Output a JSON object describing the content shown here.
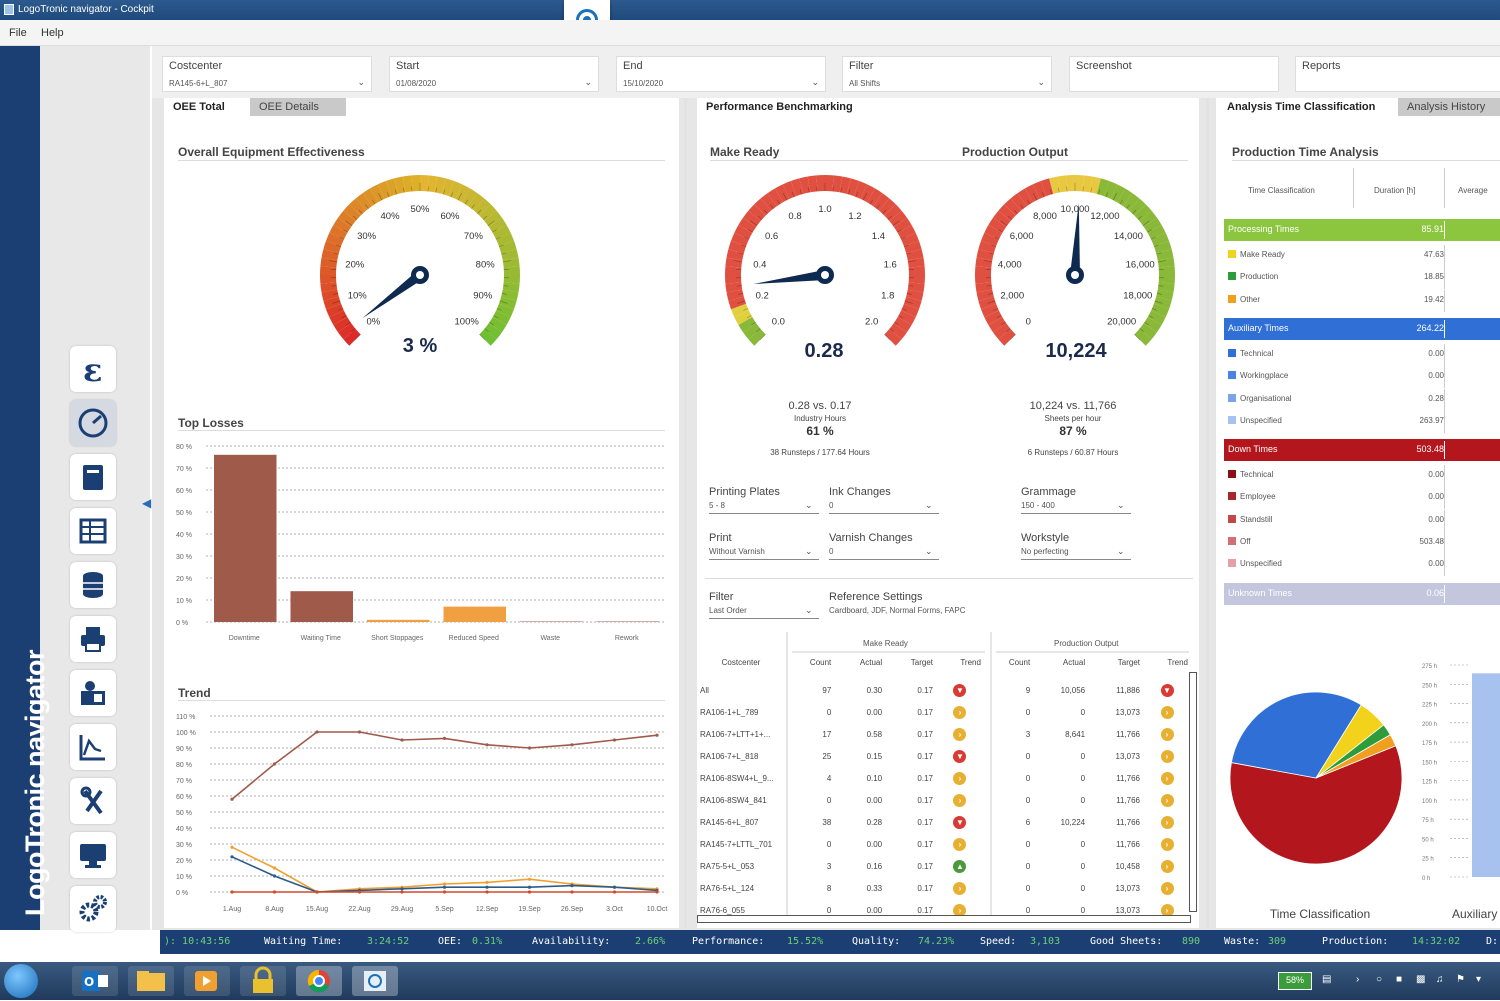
{
  "window": {
    "title": "LogoTronic navigator - Cockpit"
  },
  "menu": {
    "items": [
      "File",
      "Help"
    ]
  },
  "brand": "LogoTronic navigator",
  "filters": {
    "costcenter": {
      "label": "Costcenter",
      "value": "RA145-6+L_807"
    },
    "start": {
      "label": "Start",
      "value": "01/08/2020"
    },
    "end": {
      "label": "End",
      "value": "15/10/2020"
    },
    "filter": {
      "label": "Filter",
      "value": "All Shifts"
    },
    "screenshot": {
      "label": "Screenshot"
    },
    "reports": {
      "label": "Reports"
    }
  },
  "left_panel": {
    "tabs": [
      "OEE Total",
      "OEE Details"
    ],
    "oee_title": "Overall Equipment Effectiveness",
    "oee_value": "3 %",
    "oee_ticks": [
      "0%",
      "10%",
      "20%",
      "30%",
      "40%",
      "50%",
      "60%",
      "70%",
      "80%",
      "90%",
      "100%"
    ],
    "top_losses_title": "Top Losses",
    "trend_title": "Trend"
  },
  "middle_panel": {
    "tab": "Performance Benchmarking",
    "make_ready": {
      "title": "Make Ready",
      "value": "0.28",
      "ticks": [
        "0.0",
        "0.2",
        "0.4",
        "0.6",
        "0.8",
        "1.0",
        "1.2",
        "1.4",
        "1.6",
        "1.8",
        "2.0"
      ],
      "compare": "0.28 vs. 0.17",
      "unit": "Industry Hours",
      "percent": "61 %",
      "summary": "38 Runsteps / 177.64 Hours"
    },
    "production_output": {
      "title": "Production Output",
      "value": "10,224",
      "ticks": [
        "0",
        "2,000",
        "4,000",
        "6,000",
        "8,000",
        "10,000",
        "12,000",
        "14,000",
        "16,000",
        "18,000",
        "20,000"
      ],
      "compare": "10,224 vs. 11,766",
      "unit": "Sheets per hour",
      "percent": "87 %",
      "summary": "6 Runsteps / 60.87 Hours"
    },
    "selectors": [
      {
        "label": "Printing Plates",
        "value": "5 - 8"
      },
      {
        "label": "Ink Changes",
        "value": "0"
      },
      {
        "label": "Grammage",
        "value": "150 - 400"
      },
      {
        "label": "Print",
        "value": "Without Varnish"
      },
      {
        "label": "Varnish Changes",
        "value": "0"
      },
      {
        "label": "Workstyle",
        "value": "No perfecting"
      },
      {
        "label": "Filter",
        "value": "Last Order"
      }
    ],
    "reference": {
      "label": "Reference Settings",
      "value": "Cardboard, JDF, Normal Forms, FAPC"
    },
    "table": {
      "group_make_ready": "Make Ready",
      "group_output": "Production Output",
      "headers": [
        "Costcenter",
        "Count",
        "Actual",
        "Target",
        "Trend",
        "Count",
        "Actual",
        "Target",
        "Trend"
      ],
      "rows": [
        [
          "All",
          "97",
          "0.30",
          "0.17",
          "down",
          "9",
          "10,056",
          "11,886",
          "down"
        ],
        [
          "RA106-1+L_789",
          "0",
          "0.00",
          "0.17",
          "flat",
          "0",
          "0",
          "13,073",
          "flat"
        ],
        [
          "RA106-7+LTT+1+...",
          "17",
          "0.58",
          "0.17",
          "flat",
          "3",
          "8,641",
          "11,766",
          "flat"
        ],
        [
          "RA106-7+L_818",
          "25",
          "0.15",
          "0.17",
          "down",
          "0",
          "0",
          "13,073",
          "flat"
        ],
        [
          "RA106-8SW4+L_9...",
          "4",
          "0.10",
          "0.17",
          "flat",
          "0",
          "0",
          "11,766",
          "flat"
        ],
        [
          "RA106-8SW4_841",
          "0",
          "0.00",
          "0.17",
          "flat",
          "0",
          "0",
          "11,766",
          "flat"
        ],
        [
          "RA145-6+L_807",
          "38",
          "0.28",
          "0.17",
          "down",
          "6",
          "10,224",
          "11,766",
          "flat"
        ],
        [
          "RA145-7+LTTL_701",
          "0",
          "0.00",
          "0.17",
          "flat",
          "0",
          "0",
          "11,766",
          "flat"
        ],
        [
          "RA75-5+L_053",
          "3",
          "0.16",
          "0.17",
          "up",
          "0",
          "0",
          "10,458",
          "flat"
        ],
        [
          "RA76-5+L_124",
          "8",
          "0.33",
          "0.17",
          "flat",
          "0",
          "0",
          "13,073",
          "flat"
        ],
        [
          "RA76-6_055",
          "0",
          "0.00",
          "0.17",
          "flat",
          "0",
          "0",
          "13,073",
          "flat"
        ]
      ]
    }
  },
  "right_panel": {
    "tabs": [
      "Analysis Time Classification",
      "Analysis History"
    ],
    "title": "Production Time Analysis",
    "headers": [
      "Time Classification",
      "Duration [h]",
      "Average"
    ],
    "categories": [
      {
        "name": "Processing Times",
        "value": "85.91",
        "color": "#8cc63f",
        "items": [
          {
            "name": "Make Ready",
            "value": "47.63",
            "color": "#f2d21b"
          },
          {
            "name": "Production",
            "value": "18.85",
            "color": "#2e9c3a"
          },
          {
            "name": "Other",
            "value": "19.42",
            "color": "#f0a020"
          }
        ]
      },
      {
        "name": "Auxiliary Times",
        "value": "264.22",
        "color": "#2f6fd6",
        "items": [
          {
            "name": "Technical",
            "value": "0.00",
            "color": "#2f6fd6"
          },
          {
            "name": "Workingplace",
            "value": "0.00",
            "color": "#4a84e0"
          },
          {
            "name": "Organisational",
            "value": "0.28",
            "color": "#7aa4ea"
          },
          {
            "name": "Unspecified",
            "value": "263.97",
            "color": "#a8c2f0"
          }
        ]
      },
      {
        "name": "Down Times",
        "value": "503.48",
        "color": "#b3161c",
        "items": [
          {
            "name": "Technical",
            "value": "0.00",
            "color": "#8b1015"
          },
          {
            "name": "Employee",
            "value": "0.00",
            "color": "#a8262c"
          },
          {
            "name": "Standstill",
            "value": "0.00",
            "color": "#c2474c"
          },
          {
            "name": "Off",
            "value": "503.48",
            "color": "#d07075"
          },
          {
            "name": "Unspecified",
            "value": "0.00",
            "color": "#e2a0a4"
          }
        ]
      },
      {
        "name": "Unknown Times",
        "value": "0.06",
        "color": "#c3c6dd",
        "items": []
      }
    ],
    "pie_caption": "Time Classification",
    "bar_caption": "Auxiliary",
    "bar_ticks": [
      "275 h",
      "250 h",
      "225 h",
      "200 h",
      "175 h",
      "150 h",
      "125 h",
      "100 h",
      "75 h",
      "50 h",
      "25 h",
      "0 h"
    ]
  },
  "chart_data": [
    {
      "type": "bar",
      "title": "Top Losses",
      "categories": [
        "Downtime",
        "Waiting Time",
        "Short Stoppages",
        "Reduced Speed",
        "Waste",
        "Rework"
      ],
      "values": [
        76,
        14,
        1,
        7,
        0,
        0
      ],
      "colors": [
        "#a05a4a",
        "#a05a4a",
        "#f0a040",
        "#f0a040",
        "#a05a4a",
        "#a05a4a"
      ],
      "yticks": [
        "0 %",
        "10 %",
        "20 %",
        "30 %",
        "40 %",
        "50 %",
        "60 %",
        "70 %",
        "80 %"
      ],
      "ylim": [
        0,
        80
      ]
    },
    {
      "type": "line",
      "title": "Trend",
      "x": [
        "1.Aug",
        "8.Aug",
        "15.Aug",
        "22.Aug",
        "29.Aug",
        "5.Sep",
        "12.Sep",
        "19.Sep",
        "26.Sep",
        "3.Oct",
        "10.Oct"
      ],
      "yticks": [
        "0 %",
        "10 %",
        "20 %",
        "30 %",
        "40 %",
        "50 %",
        "60 %",
        "70 %",
        "80 %",
        "90 %",
        "100 %",
        "110 %"
      ],
      "ylim": [
        0,
        110
      ],
      "series": [
        {
          "color": "#a05a4a",
          "values": [
            58,
            80,
            100,
            100,
            95,
            96,
            92,
            90,
            92,
            95,
            98
          ]
        },
        {
          "color": "#f0a030",
          "values": [
            28,
            15,
            0,
            2,
            3,
            5,
            6,
            8,
            5,
            3,
            2
          ]
        },
        {
          "color": "#2e5c8a",
          "values": [
            22,
            10,
            0,
            1,
            2,
            3,
            3,
            3,
            4,
            3,
            1
          ]
        },
        {
          "color": "#d24a2a",
          "values": [
            0,
            0,
            0,
            0,
            0,
            0,
            0,
            0,
            0,
            0,
            0
          ]
        }
      ]
    },
    {
      "type": "pie",
      "title": "Time Classification",
      "categories": [
        "Down Times",
        "Auxiliary Times",
        "Make Ready",
        "Production",
        "Other"
      ],
      "values": [
        503.48,
        264.22,
        47.63,
        18.85,
        19.42
      ],
      "colors": [
        "#b3161c",
        "#2f6fd6",
        "#f2d21b",
        "#2e9c3a",
        "#f0a020"
      ]
    }
  ],
  "status": {
    "time_cut": "): 10:43:56",
    "waiting_label": "Waiting Time:",
    "waiting": "3:24:52",
    "oee_label": "OEE:",
    "oee": "0.31%",
    "availability_label": "Availability:",
    "availability": "2.66%",
    "performance_label": "Performance:",
    "performance": "15.52%",
    "quality_label": "Quality:",
    "quality": "74.23%",
    "speed_label": "Speed:",
    "speed": "3,103",
    "good_label": "Good Sheets:",
    "good": "890",
    "waste_label": "Waste:",
    "waste": "309",
    "production_label": "Production:",
    "production": "14:32:02",
    "tail": "D:"
  },
  "taskbar": {
    "battery": "58%"
  }
}
